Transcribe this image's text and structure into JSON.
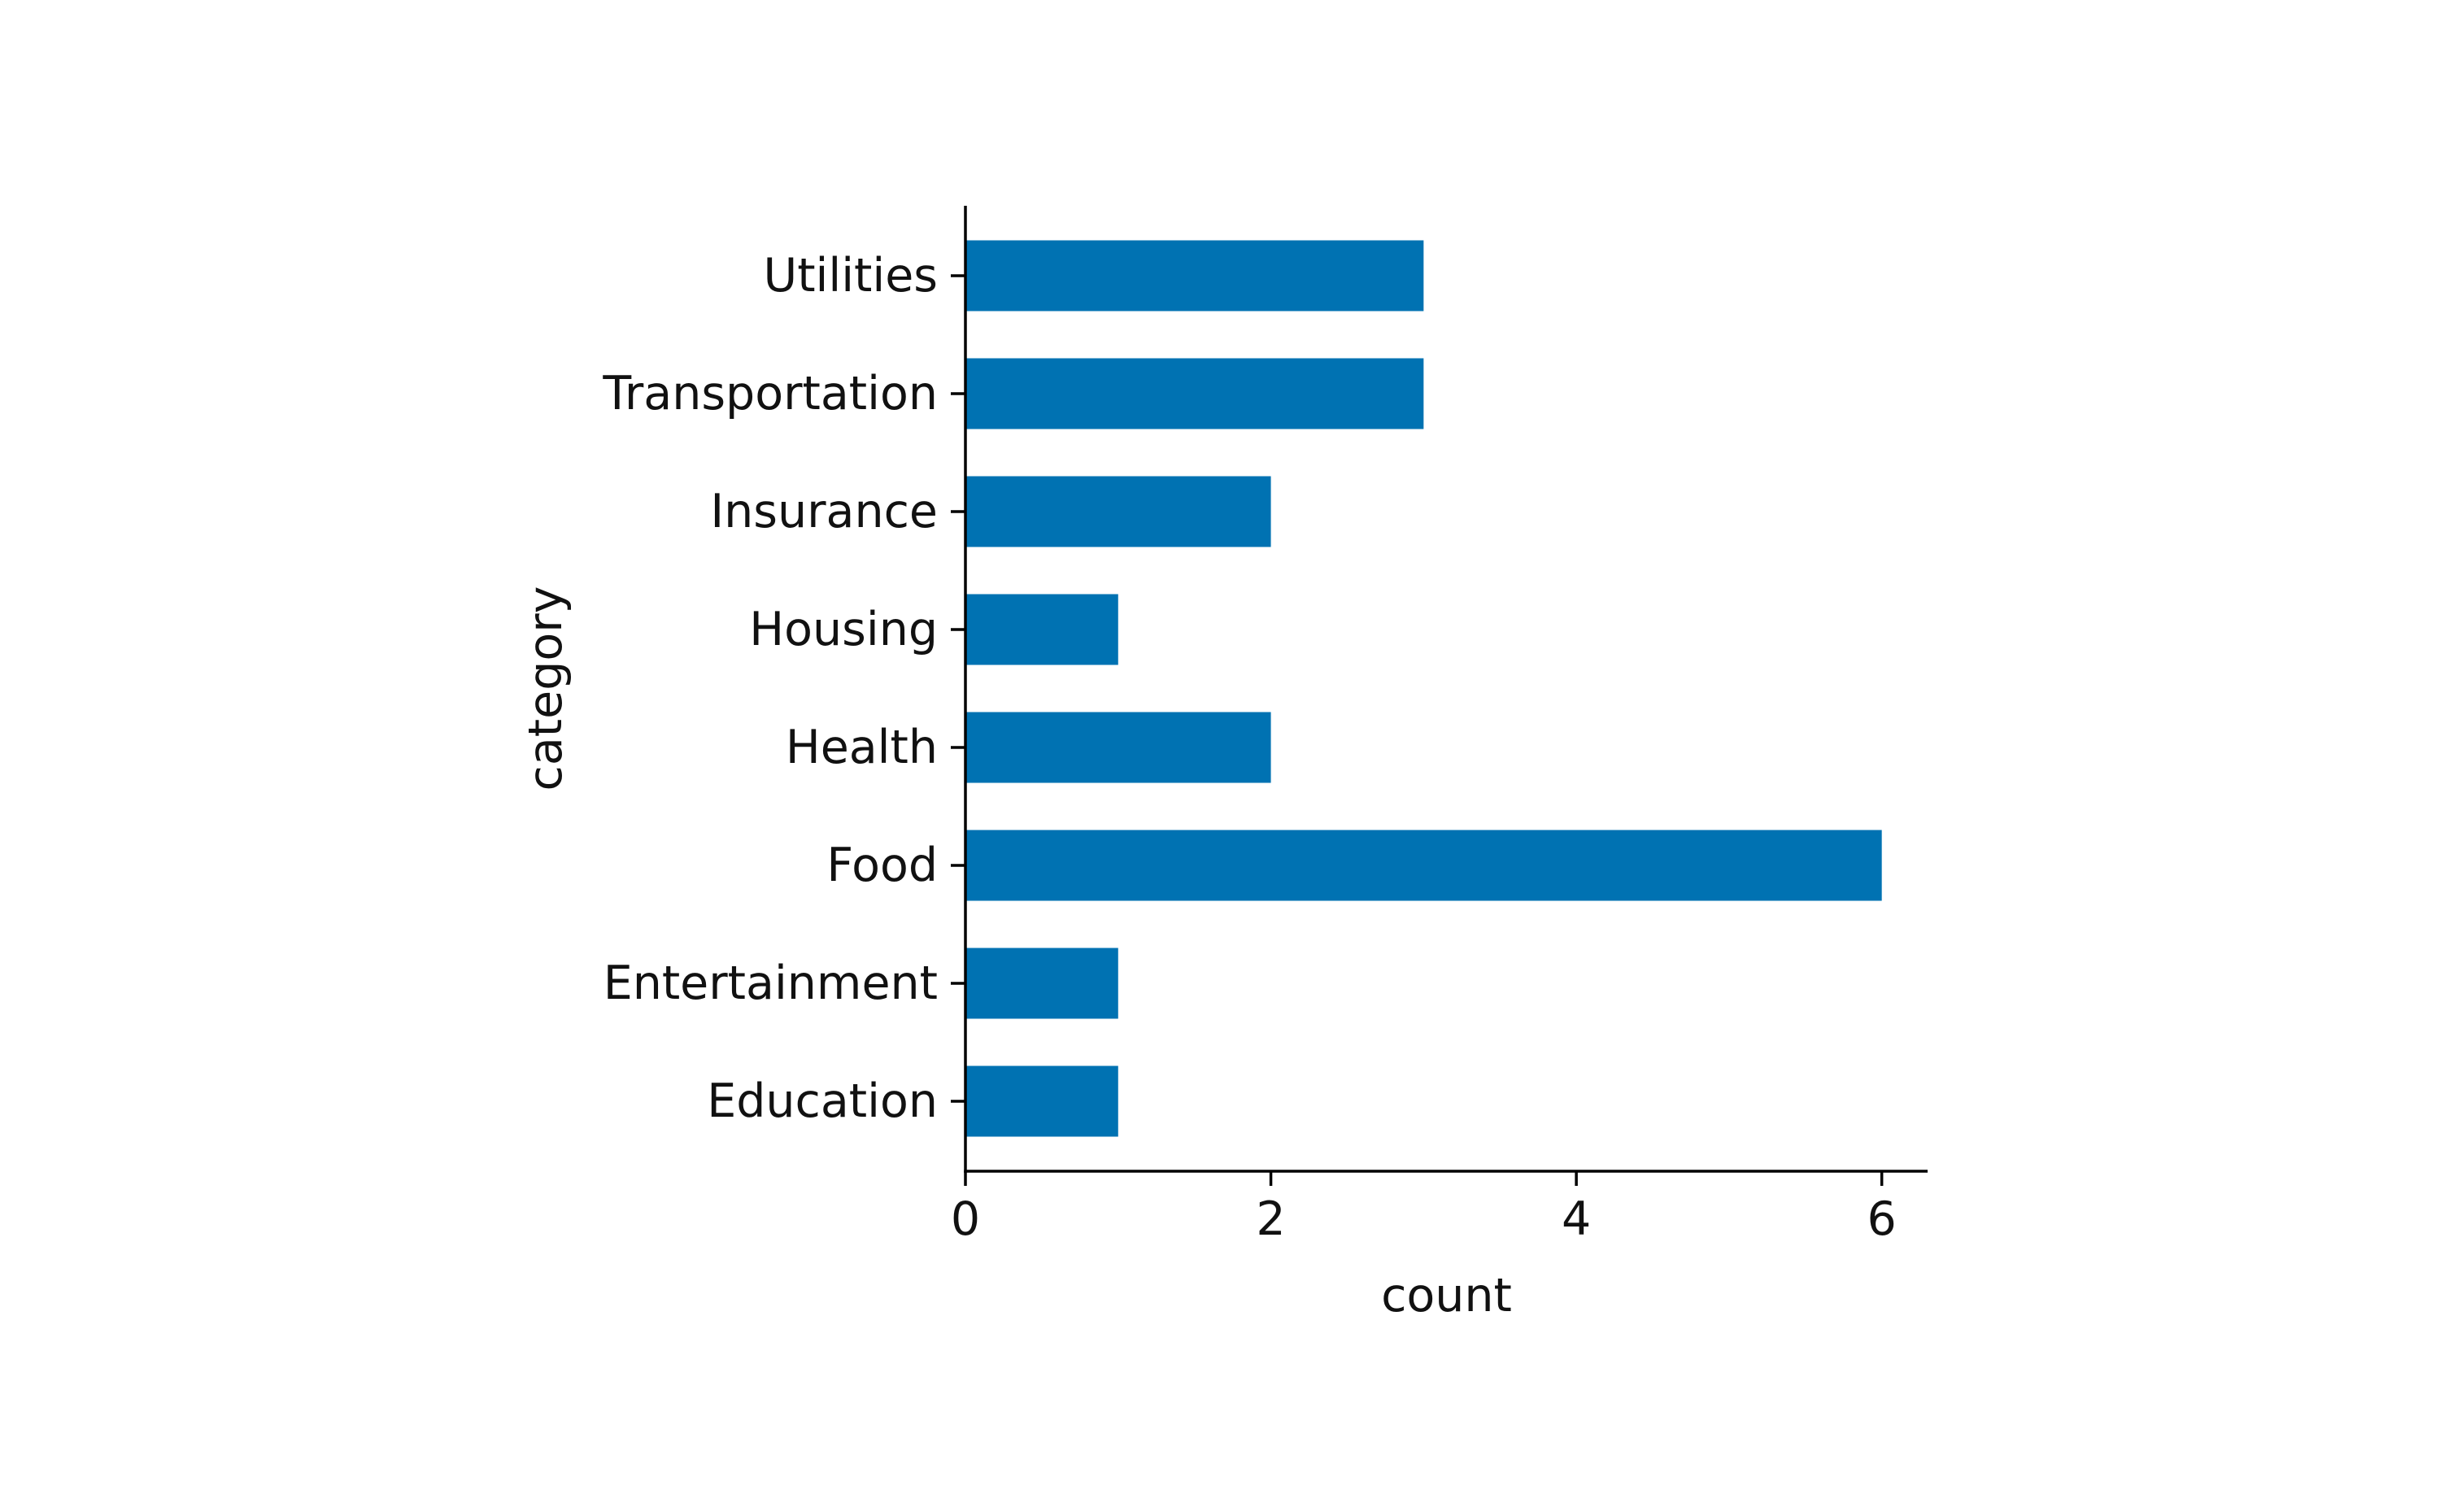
{
  "chart_data": {
    "type": "bar",
    "orientation": "horizontal",
    "categories": [
      "Utilities",
      "Transportation",
      "Insurance",
      "Housing",
      "Health",
      "Food",
      "Entertainment",
      "Education"
    ],
    "values": [
      3,
      3,
      2,
      1,
      2,
      6,
      1,
      1
    ],
    "title": "",
    "xlabel": "count",
    "ylabel": "category",
    "xlim": [
      0,
      6.3
    ],
    "xticks": [
      "0",
      "2",
      "4",
      "6"
    ],
    "grid": false,
    "legend": "none",
    "colors": {
      "bar": "#0072B2",
      "axis": "#000000"
    }
  }
}
